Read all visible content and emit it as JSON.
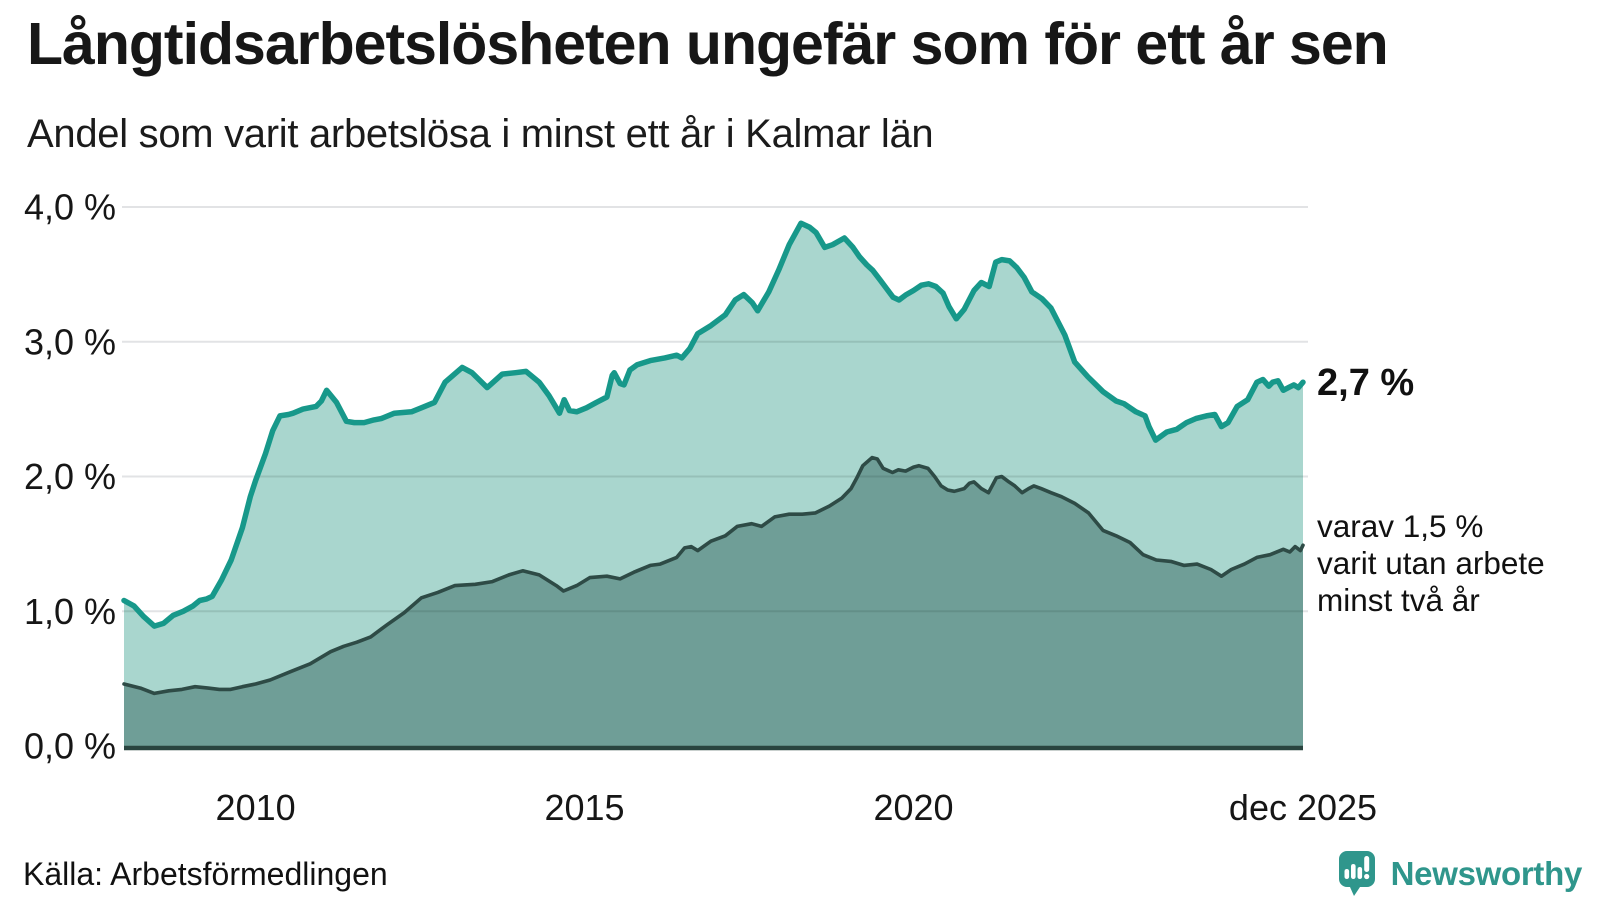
{
  "header": {
    "title": "Långtidsarbetslösheten ungefär som för ett år sen",
    "subtitle": "Andel som varit arbetslösa i minst ett år i Kalmar län"
  },
  "chart_data": {
    "type": "area",
    "title": "Långtidsarbetslösheten ungefär som för ett år sen",
    "subtitle": "Andel som varit arbetslösa i minst ett år i Kalmar län",
    "ylim": [
      0,
      4
    ],
    "xlim": [
      2008.0,
      2025.92
    ],
    "grid": "horizontal",
    "legend": "none",
    "y_ticks": [
      {
        "v": 0,
        "label": "0,0 %"
      },
      {
        "v": 1,
        "label": "1,0 %"
      },
      {
        "v": 2,
        "label": "2,0 %"
      },
      {
        "v": 3,
        "label": "3,0 %"
      },
      {
        "v": 4,
        "label": "4,0 %"
      }
    ],
    "x_ticks": [
      {
        "t": 2010.0,
        "label": "2010"
      },
      {
        "t": 2015.0,
        "label": "2015"
      },
      {
        "t": 2020.0,
        "label": "2020"
      },
      {
        "t": 2025.92,
        "label": "dec 2025"
      }
    ],
    "series": [
      {
        "id": "arbetslosa-minst-ett-ar",
        "line_color": "#17988A",
        "fill_color": "#A9D6CE",
        "end_value": 2.7,
        "points": [
          [
            2008.0,
            1.08
          ],
          [
            2008.15,
            1.04
          ],
          [
            2008.3,
            0.96
          ],
          [
            2008.46,
            0.89
          ],
          [
            2008.6,
            0.91
          ],
          [
            2008.75,
            0.97
          ],
          [
            2008.9,
            1.0
          ],
          [
            2009.05,
            1.04
          ],
          [
            2009.15,
            1.08
          ],
          [
            2009.25,
            1.09
          ],
          [
            2009.34,
            1.11
          ],
          [
            2009.48,
            1.23
          ],
          [
            2009.63,
            1.38
          ],
          [
            2009.8,
            1.62
          ],
          [
            2009.92,
            1.85
          ],
          [
            2010.0,
            1.97
          ],
          [
            2010.15,
            2.17
          ],
          [
            2010.26,
            2.34
          ],
          [
            2010.37,
            2.45
          ],
          [
            2010.5,
            2.46
          ],
          [
            2010.57,
            2.47
          ],
          [
            2010.72,
            2.5
          ],
          [
            2010.92,
            2.52
          ],
          [
            2011.0,
            2.56
          ],
          [
            2011.08,
            2.64
          ],
          [
            2011.23,
            2.55
          ],
          [
            2011.38,
            2.41
          ],
          [
            2011.5,
            2.4
          ],
          [
            2011.65,
            2.4
          ],
          [
            2011.8,
            2.42
          ],
          [
            2011.91,
            2.43
          ],
          [
            2012.11,
            2.47
          ],
          [
            2012.37,
            2.48
          ],
          [
            2012.52,
            2.51
          ],
          [
            2012.72,
            2.55
          ],
          [
            2012.88,
            2.7
          ],
          [
            2013.14,
            2.81
          ],
          [
            2013.29,
            2.77
          ],
          [
            2013.52,
            2.66
          ],
          [
            2013.75,
            2.76
          ],
          [
            2013.95,
            2.77
          ],
          [
            2014.11,
            2.78
          ],
          [
            2014.31,
            2.7
          ],
          [
            2014.46,
            2.6
          ],
          [
            2014.62,
            2.47
          ],
          [
            2014.69,
            2.57
          ],
          [
            2014.77,
            2.49
          ],
          [
            2014.88,
            2.48
          ],
          [
            2015.03,
            2.51
          ],
          [
            2015.18,
            2.55
          ],
          [
            2015.34,
            2.59
          ],
          [
            2015.42,
            2.75
          ],
          [
            2015.45,
            2.77
          ],
          [
            2015.54,
            2.69
          ],
          [
            2015.6,
            2.68
          ],
          [
            2015.69,
            2.79
          ],
          [
            2015.8,
            2.83
          ],
          [
            2016.0,
            2.86
          ],
          [
            2016.22,
            2.88
          ],
          [
            2016.4,
            2.9
          ],
          [
            2016.48,
            2.88
          ],
          [
            2016.6,
            2.95
          ],
          [
            2016.72,
            3.06
          ],
          [
            2016.92,
            3.12
          ],
          [
            2017.14,
            3.2
          ],
          [
            2017.29,
            3.31
          ],
          [
            2017.42,
            3.35
          ],
          [
            2017.55,
            3.29
          ],
          [
            2017.63,
            3.23
          ],
          [
            2017.8,
            3.37
          ],
          [
            2017.95,
            3.53
          ],
          [
            2018.11,
            3.72
          ],
          [
            2018.29,
            3.88
          ],
          [
            2018.42,
            3.85
          ],
          [
            2018.52,
            3.81
          ],
          [
            2018.65,
            3.7
          ],
          [
            2018.77,
            3.72
          ],
          [
            2018.95,
            3.77
          ],
          [
            2019.08,
            3.7
          ],
          [
            2019.18,
            3.63
          ],
          [
            2019.29,
            3.57
          ],
          [
            2019.38,
            3.53
          ],
          [
            2019.49,
            3.46
          ],
          [
            2019.69,
            3.33
          ],
          [
            2019.78,
            3.31
          ],
          [
            2019.89,
            3.35
          ],
          [
            2020.0,
            3.38
          ],
          [
            2020.12,
            3.42
          ],
          [
            2020.23,
            3.43
          ],
          [
            2020.34,
            3.41
          ],
          [
            2020.45,
            3.36
          ],
          [
            2020.54,
            3.26
          ],
          [
            2020.65,
            3.17
          ],
          [
            2020.77,
            3.24
          ],
          [
            2020.92,
            3.38
          ],
          [
            2021.03,
            3.44
          ],
          [
            2021.15,
            3.41
          ],
          [
            2021.25,
            3.59
          ],
          [
            2021.34,
            3.61
          ],
          [
            2021.46,
            3.6
          ],
          [
            2021.57,
            3.55
          ],
          [
            2021.68,
            3.48
          ],
          [
            2021.8,
            3.37
          ],
          [
            2021.95,
            3.32
          ],
          [
            2022.09,
            3.25
          ],
          [
            2022.3,
            3.05
          ],
          [
            2022.45,
            2.85
          ],
          [
            2022.65,
            2.74
          ],
          [
            2022.88,
            2.63
          ],
          [
            2023.08,
            2.56
          ],
          [
            2023.2,
            2.54
          ],
          [
            2023.38,
            2.48
          ],
          [
            2023.52,
            2.45
          ],
          [
            2023.58,
            2.37
          ],
          [
            2023.68,
            2.27
          ],
          [
            2023.85,
            2.33
          ],
          [
            2024.0,
            2.35
          ],
          [
            2024.15,
            2.4
          ],
          [
            2024.29,
            2.43
          ],
          [
            2024.45,
            2.45
          ],
          [
            2024.58,
            2.46
          ],
          [
            2024.68,
            2.37
          ],
          [
            2024.78,
            2.4
          ],
          [
            2024.92,
            2.52
          ],
          [
            2025.08,
            2.57
          ],
          [
            2025.22,
            2.7
          ],
          [
            2025.31,
            2.72
          ],
          [
            2025.4,
            2.67
          ],
          [
            2025.46,
            2.7
          ],
          [
            2025.54,
            2.71
          ],
          [
            2025.62,
            2.64
          ],
          [
            2025.7,
            2.66
          ],
          [
            2025.78,
            2.68
          ],
          [
            2025.85,
            2.66
          ],
          [
            2025.92,
            2.7
          ]
        ]
      },
      {
        "id": "arbetslosa-minst-tva-ar",
        "line_color": "#2E4B46",
        "fill_color": "#6F9E97",
        "end_value": 1.5,
        "points": [
          [
            2008.0,
            0.46
          ],
          [
            2008.25,
            0.43
          ],
          [
            2008.46,
            0.39
          ],
          [
            2008.68,
            0.41
          ],
          [
            2008.88,
            0.42
          ],
          [
            2009.08,
            0.44
          ],
          [
            2009.28,
            0.43
          ],
          [
            2009.45,
            0.42
          ],
          [
            2009.62,
            0.42
          ],
          [
            2009.8,
            0.44
          ],
          [
            2010.0,
            0.46
          ],
          [
            2010.22,
            0.49
          ],
          [
            2010.52,
            0.55
          ],
          [
            2010.83,
            0.61
          ],
          [
            2011.14,
            0.7
          ],
          [
            2011.34,
            0.74
          ],
          [
            2011.54,
            0.77
          ],
          [
            2011.75,
            0.81
          ],
          [
            2012.0,
            0.9
          ],
          [
            2012.26,
            0.99
          ],
          [
            2012.52,
            1.1
          ],
          [
            2012.77,
            1.14
          ],
          [
            2013.03,
            1.19
          ],
          [
            2013.34,
            1.2
          ],
          [
            2013.6,
            1.22
          ],
          [
            2013.85,
            1.27
          ],
          [
            2014.06,
            1.3
          ],
          [
            2014.31,
            1.27
          ],
          [
            2014.57,
            1.19
          ],
          [
            2014.68,
            1.15
          ],
          [
            2014.88,
            1.19
          ],
          [
            2015.08,
            1.25
          ],
          [
            2015.34,
            1.26
          ],
          [
            2015.54,
            1.24
          ],
          [
            2015.75,
            1.29
          ],
          [
            2016.0,
            1.34
          ],
          [
            2016.15,
            1.35
          ],
          [
            2016.4,
            1.4
          ],
          [
            2016.52,
            1.47
          ],
          [
            2016.62,
            1.48
          ],
          [
            2016.72,
            1.45
          ],
          [
            2016.92,
            1.52
          ],
          [
            2017.14,
            1.56
          ],
          [
            2017.32,
            1.63
          ],
          [
            2017.54,
            1.65
          ],
          [
            2017.69,
            1.63
          ],
          [
            2017.89,
            1.7
          ],
          [
            2018.11,
            1.72
          ],
          [
            2018.31,
            1.72
          ],
          [
            2018.51,
            1.73
          ],
          [
            2018.72,
            1.78
          ],
          [
            2018.91,
            1.84
          ],
          [
            2019.05,
            1.91
          ],
          [
            2019.14,
            1.99
          ],
          [
            2019.23,
            2.08
          ],
          [
            2019.37,
            2.14
          ],
          [
            2019.45,
            2.13
          ],
          [
            2019.54,
            2.06
          ],
          [
            2019.68,
            2.03
          ],
          [
            2019.77,
            2.05
          ],
          [
            2019.88,
            2.04
          ],
          [
            2020.0,
            2.07
          ],
          [
            2020.08,
            2.08
          ],
          [
            2020.22,
            2.06
          ],
          [
            2020.32,
            2.0
          ],
          [
            2020.42,
            1.93
          ],
          [
            2020.52,
            1.9
          ],
          [
            2020.62,
            1.89
          ],
          [
            2020.77,
            1.91
          ],
          [
            2020.85,
            1.95
          ],
          [
            2020.92,
            1.96
          ],
          [
            2021.03,
            1.91
          ],
          [
            2021.14,
            1.88
          ],
          [
            2021.26,
            1.99
          ],
          [
            2021.34,
            2.0
          ],
          [
            2021.45,
            1.96
          ],
          [
            2021.54,
            1.93
          ],
          [
            2021.65,
            1.88
          ],
          [
            2021.75,
            1.91
          ],
          [
            2021.83,
            1.93
          ],
          [
            2021.94,
            1.91
          ],
          [
            2022.09,
            1.88
          ],
          [
            2022.25,
            1.85
          ],
          [
            2022.45,
            1.8
          ],
          [
            2022.66,
            1.73
          ],
          [
            2022.88,
            1.6
          ],
          [
            2023.08,
            1.56
          ],
          [
            2023.29,
            1.51
          ],
          [
            2023.49,
            1.42
          ],
          [
            2023.69,
            1.38
          ],
          [
            2023.91,
            1.37
          ],
          [
            2024.11,
            1.34
          ],
          [
            2024.31,
            1.35
          ],
          [
            2024.52,
            1.31
          ],
          [
            2024.68,
            1.26
          ],
          [
            2024.83,
            1.31
          ],
          [
            2025.03,
            1.35
          ],
          [
            2025.22,
            1.4
          ],
          [
            2025.42,
            1.42
          ],
          [
            2025.62,
            1.46
          ],
          [
            2025.72,
            1.44
          ],
          [
            2025.8,
            1.48
          ],
          [
            2025.88,
            1.45
          ],
          [
            2025.92,
            1.49
          ]
        ]
      }
    ],
    "annotations": {
      "end_value_label": "2,7 %",
      "note_lines": [
        "varav 1,5 %",
        "varit utan arbete",
        "minst två år"
      ]
    },
    "colors": {
      "gridline": "#E2E3E5",
      "axis_line": "#29443F",
      "tick_label": "#161616",
      "annotation": "#111111"
    }
  },
  "footer": {
    "source": "Källa: Arbetsförmedlingen",
    "logo_text": "Newsworthy",
    "logo_color": "#2F968C",
    "logo_icon": "speech-bubble-bar-chart-exclamation"
  }
}
